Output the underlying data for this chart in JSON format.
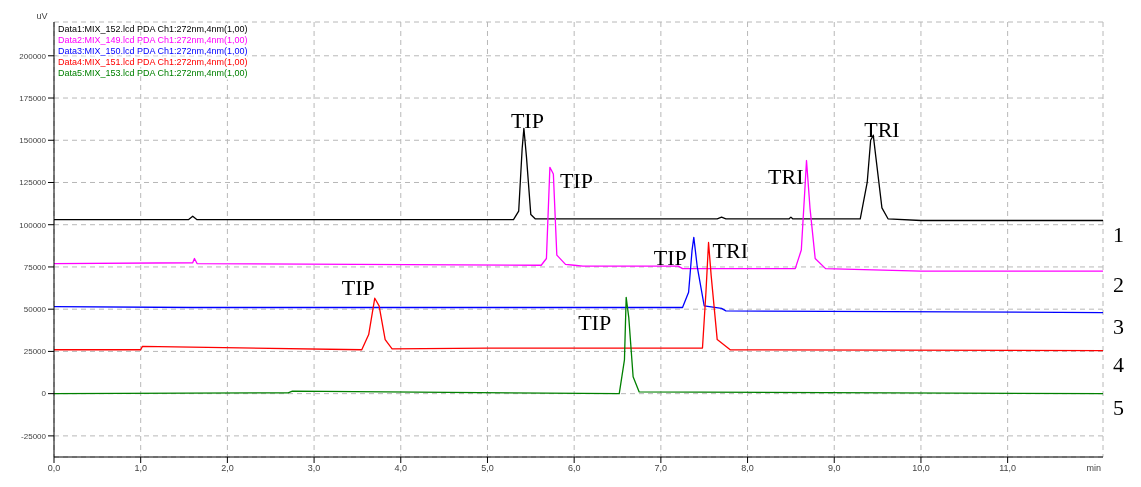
{
  "chart_data": {
    "type": "line",
    "xlabel": "min",
    "ylabel": "uV",
    "xlim": [
      0,
      12.1
    ],
    "ylim": [
      -37500,
      220000
    ],
    "xticks": [
      {
        "value": 0,
        "label": "0,0"
      },
      {
        "value": 1,
        "label": "1,0"
      },
      {
        "value": 2,
        "label": "2,0"
      },
      {
        "value": 3,
        "label": "3,0"
      },
      {
        "value": 4,
        "label": "4,0"
      },
      {
        "value": 5,
        "label": "5,0"
      },
      {
        "value": 6,
        "label": "6,0"
      },
      {
        "value": 7,
        "label": "7,0"
      },
      {
        "value": 8,
        "label": "8,0"
      },
      {
        "value": 9,
        "label": "9,0"
      },
      {
        "value": 10,
        "label": "10,0"
      },
      {
        "value": 11,
        "label": "11,0"
      }
    ],
    "yticks": [
      -25000,
      0,
      25000,
      50000,
      75000,
      100000,
      125000,
      150000,
      175000,
      200000
    ],
    "grid": true,
    "legend": "top left",
    "marker": "none",
    "line_style": "solid",
    "series": [
      {
        "name": "Data1:MIX_152.lcd PDA Ch1:272nm,4nm(1,00)",
        "color": "#000000",
        "x": [
          0,
          1.55,
          1.6,
          1.65,
          5.3,
          5.36,
          5.4,
          5.42,
          5.45,
          5.5,
          5.55,
          7.65,
          7.7,
          7.75,
          8.48,
          8.5,
          8.52,
          9.3,
          9.38,
          9.42,
          9.45,
          9.48,
          9.55,
          9.62,
          10.0,
          12.1
        ],
        "values": [
          103000,
          103000,
          105000,
          103000,
          103000,
          108000,
          145000,
          157000,
          140000,
          106000,
          103500,
          103500,
          104500,
          103500,
          103500,
          104500,
          103500,
          103500,
          125000,
          150000,
          153000,
          140000,
          110000,
          103500,
          102500,
          102500
        ]
      },
      {
        "name": "Data2:MIX_149.lcd PDA Ch1:272nm,4nm(1,00)",
        "color": "#ff00ff",
        "x": [
          0,
          1.6,
          1.62,
          1.65,
          5.62,
          5.68,
          5.72,
          5.76,
          5.8,
          5.9,
          6.0,
          6.1,
          7.2,
          7.25,
          8.55,
          8.62,
          8.66,
          8.68,
          8.72,
          8.78,
          8.9,
          10.0,
          12.1
        ],
        "values": [
          77000,
          77500,
          80000,
          77000,
          76000,
          80000,
          134000,
          130000,
          82000,
          76500,
          76000,
          75500,
          75500,
          74000,
          74000,
          85000,
          120000,
          138000,
          110000,
          80000,
          74000,
          72500,
          72500
        ]
      },
      {
        "name": "Data3:MIX_150.lcd PDA Ch1:272nm,4nm(1,00)",
        "color": "#0000ff",
        "x": [
          0,
          1.6,
          7.25,
          7.32,
          7.36,
          7.38,
          7.42,
          7.5,
          7.7,
          7.75,
          12.1
        ],
        "values": [
          51500,
          51000,
          51000,
          60000,
          85000,
          92500,
          75000,
          52000,
          50500,
          49000,
          48000
        ]
      },
      {
        "name": "Data4:MIX_151.lcd PDA Ch1:272nm,4nm(1,00)",
        "color": "#ff0000",
        "x": [
          0,
          1.0,
          1.02,
          3.55,
          3.63,
          3.7,
          3.75,
          3.82,
          3.9,
          5.0,
          7.48,
          7.52,
          7.55,
          7.58,
          7.65,
          7.8,
          12.1
        ],
        "values": [
          26000,
          26000,
          28000,
          26000,
          35000,
          56500,
          52000,
          32000,
          26500,
          27000,
          27000,
          60000,
          89500,
          70000,
          32000,
          26000,
          25500
        ]
      },
      {
        "name": "Data5:MIX_153.lcd PDA Ch1:272nm,4nm(1,00)",
        "color": "#008000",
        "x": [
          0,
          2.7,
          2.75,
          6.52,
          6.58,
          6.6,
          6.63,
          6.68,
          6.75,
          12.1
        ],
        "values": [
          0,
          500,
          1500,
          0,
          20000,
          57000,
          45000,
          10000,
          1000,
          0
        ]
      }
    ],
    "annotations": [
      {
        "text": "TIP",
        "x": 5.42,
        "y": 157000
      },
      {
        "text": "TIP",
        "x": 5.72,
        "y": 134000
      },
      {
        "text": "TRI",
        "x": 8.68,
        "y": 138000
      },
      {
        "text": "TRI",
        "x": 9.45,
        "y": 153000
      },
      {
        "text": "TIP",
        "x": 7.38,
        "y": 92500
      },
      {
        "text": "TRI",
        "x": 7.55,
        "y": 89500
      },
      {
        "text": "TIP",
        "x": 3.7,
        "y": 56500
      },
      {
        "text": "TIP",
        "x": 6.6,
        "y": 57000
      },
      "1",
      "2",
      "3",
      "4",
      "5"
    ]
  }
}
